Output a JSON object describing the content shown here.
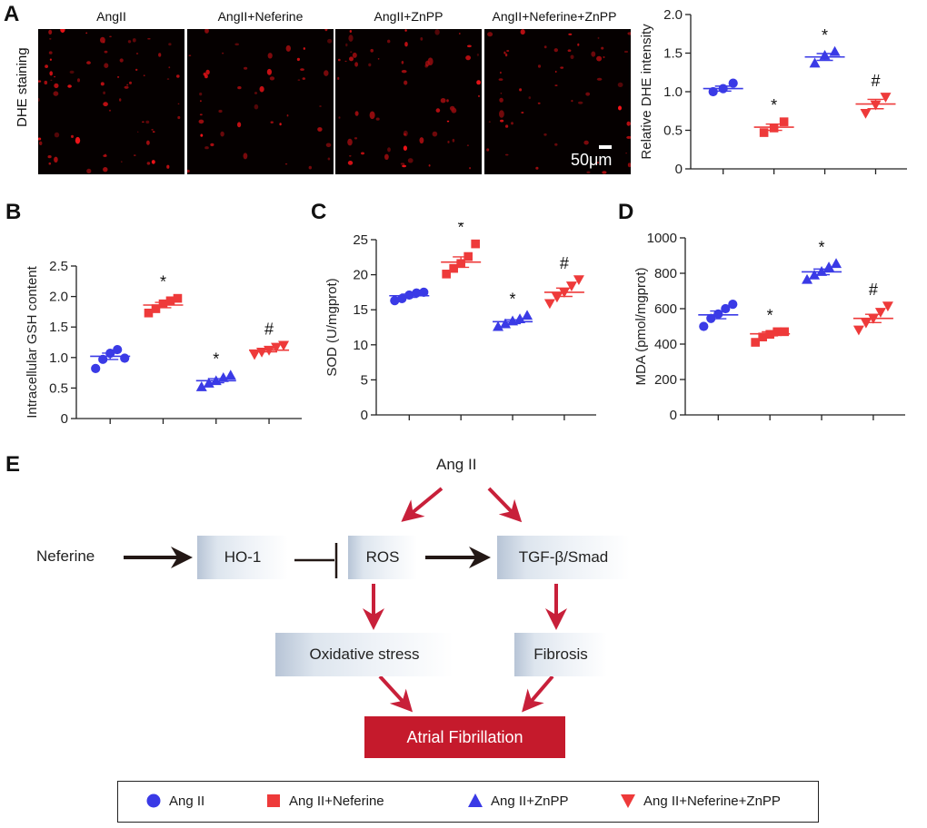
{
  "panels": {
    "a": "A",
    "b": "B",
    "c": "C",
    "d": "D",
    "e": "E"
  },
  "colors": {
    "angii": "#3a3ae6",
    "neferine": "#ee3a3a",
    "znpp": "#3a3ae6",
    "combo": "#ee3a3a",
    "af_box": "#c51a2c",
    "arrow_red": "#c8203a",
    "arrow_dark": "#231815"
  },
  "panel_a": {
    "image_labels": [
      "AngII",
      "AngII+Neferine",
      "AngII+ZnPP",
      "AngII+Neferine+ZnPP"
    ],
    "side_label": "DHE staining",
    "scale_bar": "50μm"
  },
  "chart_data": [
    {
      "id": "A",
      "type": "scatter",
      "title": "",
      "ylabel": "Relative DHE intensity",
      "ylim": [
        0,
        2.0
      ],
      "yticks": [
        "0",
        "0.5",
        "1.0",
        "1.5",
        "2.0"
      ],
      "groups": [
        "Ang II",
        "Ang II+Neferine",
        "Ang II+ZnPP",
        "Ang II+Neferine+ZnPP"
      ],
      "series": [
        {
          "name": "Ang II",
          "marker": "circle",
          "mean": 1.04,
          "points": [
            1.0,
            1.04,
            1.11
          ],
          "annotation": ""
        },
        {
          "name": "Ang II+Neferine",
          "marker": "square",
          "mean": 0.54,
          "points": [
            0.47,
            0.53,
            0.61
          ],
          "annotation": "*"
        },
        {
          "name": "Ang II+ZnPP",
          "marker": "triangle-up",
          "mean": 1.45,
          "points": [
            1.37,
            1.47,
            1.52
          ],
          "annotation": "*"
        },
        {
          "name": "Ang II+Neferine+ZnPP",
          "marker": "triangle-down",
          "mean": 0.84,
          "points": [
            0.72,
            0.83,
            0.93
          ],
          "annotation": "#"
        }
      ]
    },
    {
      "id": "B",
      "type": "scatter",
      "title": "",
      "ylabel": "Intracellular GSH content",
      "ylim": [
        0,
        2.5
      ],
      "yticks": [
        "0",
        "0.5",
        "1.0",
        "1.5",
        "2.0",
        "2.5"
      ],
      "groups": [
        "Ang II",
        "Ang II+Neferine",
        "Ang II+ZnPP",
        "Ang II+Neferine+ZnPP"
      ],
      "series": [
        {
          "name": "Ang II",
          "marker": "circle",
          "mean": 1.02,
          "points": [
            0.82,
            0.97,
            1.07,
            1.13,
            0.99
          ],
          "annotation": ""
        },
        {
          "name": "Ang II+Neferine",
          "marker": "square",
          "mean": 1.86,
          "points": [
            1.73,
            1.8,
            1.88,
            1.93,
            1.97
          ],
          "annotation": "*"
        },
        {
          "name": "Ang II+ZnPP",
          "marker": "triangle-up",
          "mean": 0.62,
          "points": [
            0.52,
            0.58,
            0.62,
            0.67,
            0.71
          ],
          "annotation": "*"
        },
        {
          "name": "Ang II+Neferine+ZnPP",
          "marker": "triangle-down",
          "mean": 1.12,
          "points": [
            1.05,
            1.09,
            1.12,
            1.17,
            1.2
          ],
          "annotation": "#"
        }
      ]
    },
    {
      "id": "C",
      "type": "scatter",
      "title": "",
      "ylabel": "SOD (U/mgprot)",
      "ylim": [
        0,
        25
      ],
      "yticks": [
        "0",
        "5",
        "10",
        "15",
        "20",
        "25"
      ],
      "groups": [
        "Ang II",
        "Ang II+Neferine",
        "Ang II+ZnPP",
        "Ang II+Neferine+ZnPP"
      ],
      "series": [
        {
          "name": "Ang II",
          "marker": "circle",
          "mean": 17.0,
          "points": [
            16.3,
            16.6,
            17.1,
            17.4,
            17.5
          ],
          "annotation": ""
        },
        {
          "name": "Ang II+Neferine",
          "marker": "square",
          "mean": 21.8,
          "points": [
            20.1,
            20.9,
            21.6,
            22.6,
            24.4
          ],
          "annotation": "*"
        },
        {
          "name": "Ang II+ZnPP",
          "marker": "triangle-up",
          "mean": 13.3,
          "points": [
            12.6,
            13.0,
            13.4,
            13.7,
            14.2
          ],
          "annotation": "*"
        },
        {
          "name": "Ang II+Neferine+ZnPP",
          "marker": "triangle-down",
          "mean": 17.5,
          "points": [
            15.9,
            16.8,
            17.5,
            18.4,
            19.3
          ],
          "annotation": "#"
        }
      ]
    },
    {
      "id": "D",
      "type": "scatter",
      "title": "",
      "ylabel": "MDA (pmol/mgprot)",
      "ylim": [
        0,
        1000
      ],
      "yticks": [
        "0",
        "200",
        "400",
        "600",
        "800",
        "1000"
      ],
      "groups": [
        "Ang II",
        "Ang II+Neferine",
        "Ang II+ZnPP",
        "Ang II+Neferine+ZnPP"
      ],
      "series": [
        {
          "name": "Ang II",
          "marker": "circle",
          "mean": 565,
          "points": [
            500,
            545,
            570,
            600,
            625
          ],
          "annotation": ""
        },
        {
          "name": "Ang II+Neferine",
          "marker": "square",
          "mean": 458,
          "points": [
            410,
            440,
            455,
            470,
            470
          ],
          "annotation": "*"
        },
        {
          "name": "Ang II+ZnPP",
          "marker": "triangle-up",
          "mean": 808,
          "points": [
            765,
            790,
            810,
            835,
            855
          ],
          "annotation": "*"
        },
        {
          "name": "Ang II+Neferine+ZnPP",
          "marker": "triangle-down",
          "mean": 545,
          "points": [
            480,
            520,
            545,
            580,
            615
          ],
          "annotation": "#"
        }
      ]
    }
  ],
  "diagram": {
    "ang_ii": "Ang II",
    "neferine": "Neferine",
    "ho1": "HO-1",
    "ros": "ROS",
    "tgf": "TGF-β/Smad",
    "oxidative": "Oxidative stress",
    "fibrosis": "Fibrosis",
    "af": "Atrial Fibrillation"
  },
  "legend": [
    {
      "label": "Ang II",
      "marker": "circle",
      "color": "#3a3ae6"
    },
    {
      "label": "Ang II+Neferine",
      "marker": "square",
      "color": "#ee3a3a"
    },
    {
      "label": "Ang II+ZnPP",
      "marker": "triangle-up",
      "color": "#3a3ae6"
    },
    {
      "label": "Ang II+Neferine+ZnPP",
      "marker": "triangle-down",
      "color": "#ee3a3a"
    }
  ]
}
